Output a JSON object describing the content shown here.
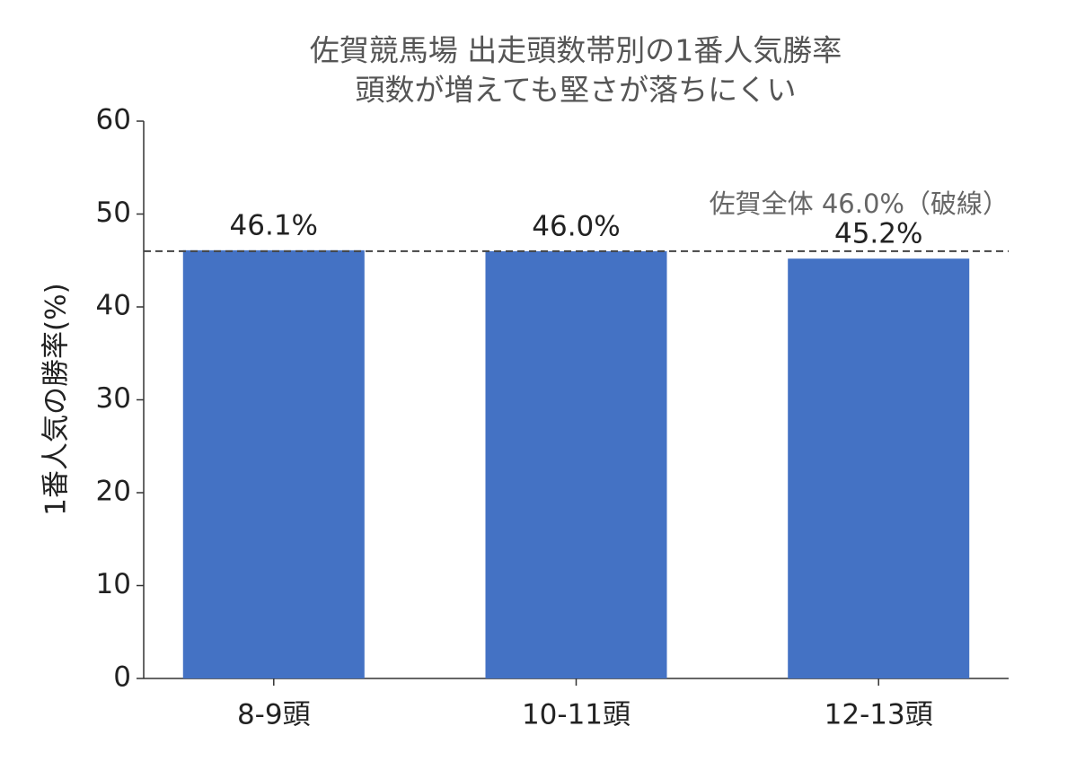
{
  "chart_data": {
    "type": "bar",
    "title": "佐賀競馬場 出走頭数帯別の1番人気勝率",
    "subtitle": "頭数が増えても堅さが落ちにくい",
    "y_label": "1番人気の勝率(%)",
    "categories": [
      "8-9頭",
      "10-11頭",
      "12-13頭"
    ],
    "values": [
      46.1,
      46.0,
      45.2
    ],
    "value_labels": [
      "46.1%",
      "46.0%",
      "45.2%"
    ],
    "color": "#4472c4",
    "ylim": [
      0,
      60
    ],
    "yticks": [
      0,
      10,
      20,
      30,
      40,
      50,
      60
    ],
    "grid": false,
    "reference_line": {
      "value": 46.0,
      "label": "佐賀全体 46.0%（破線）",
      "color": "#444444"
    }
  }
}
